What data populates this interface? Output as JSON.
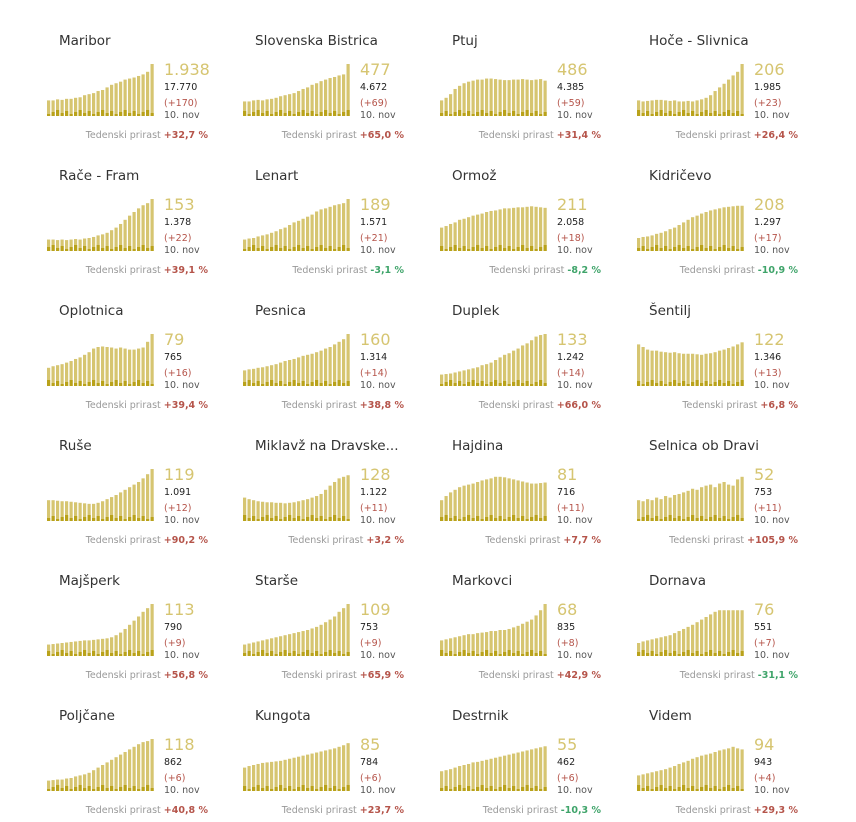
{
  "growth_label": "Tedenski prirast",
  "date_label": "10. nov",
  "colors": {
    "active": "#d6c571",
    "new": "#b9a21a",
    "positive": "#b5544a",
    "negative": "#3fa46a"
  },
  "chart_data": [
    {
      "type": "bar",
      "title": "Maribor",
      "active": "1.938",
      "total": "17.770",
      "new": "(+170)",
      "growth": "+32,7 %",
      "trend": "pos",
      "values": [
        30,
        30,
        32,
        31,
        33,
        33,
        35,
        36,
        40,
        42,
        44,
        48,
        50,
        55,
        60,
        63,
        66,
        70,
        72,
        74,
        77,
        80,
        85,
        100
      ]
    },
    {
      "type": "bar",
      "title": "Slovenska Bistrica",
      "active": "477",
      "total": "4.672",
      "new": "(+69)",
      "growth": "+65,0 %",
      "trend": "pos",
      "values": [
        28,
        28,
        30,
        31,
        30,
        32,
        33,
        35,
        38,
        40,
        42,
        44,
        48,
        52,
        55,
        60,
        63,
        67,
        70,
        73,
        75,
        78,
        80,
        100
      ]
    },
    {
      "type": "bar",
      "title": "Ptuj",
      "active": "486",
      "total": "4.385",
      "new": "(+59)",
      "growth": "+31,4 %",
      "trend": "pos",
      "values": [
        30,
        35,
        42,
        52,
        58,
        63,
        66,
        68,
        70,
        70,
        72,
        72,
        71,
        70,
        69,
        69,
        70,
        70,
        71,
        70,
        69,
        70,
        71,
        68
      ]
    },
    {
      "type": "bar",
      "title": "Hoče - Slivnica",
      "active": "206",
      "total": "1.985",
      "new": "(+23)",
      "growth": "+26,4 %",
      "trend": "pos",
      "values": [
        30,
        28,
        29,
        30,
        31,
        31,
        30,
        29,
        30,
        28,
        28,
        29,
        28,
        30,
        32,
        35,
        40,
        48,
        55,
        62,
        70,
        78,
        85,
        100
      ]
    },
    {
      "type": "bar",
      "title": "Rače - Fram",
      "active": "153",
      "total": "1.378",
      "new": "(+22)",
      "growth": "+39,1 %",
      "trend": "pos",
      "values": [
        22,
        22,
        21,
        22,
        21,
        22,
        23,
        22,
        24,
        25,
        27,
        30,
        32,
        35,
        40,
        45,
        52,
        60,
        68,
        75,
        82,
        88,
        92,
        100
      ]
    },
    {
      "type": "bar",
      "title": "Lenart",
      "active": "189",
      "total": "1.571",
      "new": "(+21)",
      "growth": "-3,1 %",
      "trend": "neg",
      "values": [
        22,
        24,
        25,
        28,
        30,
        32,
        35,
        38,
        42,
        45,
        50,
        55,
        58,
        62,
        66,
        70,
        76,
        80,
        82,
        85,
        88,
        90,
        92,
        100
      ]
    },
    {
      "type": "bar",
      "title": "Ormož",
      "active": "211",
      "total": "2.058",
      "new": "(+18)",
      "growth": "-8,2 %",
      "trend": "neg",
      "values": [
        45,
        48,
        52,
        55,
        60,
        62,
        65,
        68,
        70,
        72,
        75,
        77,
        78,
        80,
        82,
        82,
        83,
        84,
        84,
        85,
        86,
        85,
        84,
        83
      ]
    },
    {
      "type": "bar",
      "title": "Kidričevo",
      "active": "208",
      "total": "1.297",
      "new": "(+17)",
      "growth": "-10,9 %",
      "trend": "neg",
      "values": [
        25,
        27,
        28,
        30,
        33,
        35,
        38,
        42,
        45,
        50,
        55,
        60,
        65,
        68,
        72,
        75,
        78,
        80,
        82,
        84,
        85,
        86,
        87,
        87
      ]
    },
    {
      "type": "bar",
      "title": "Oplotnica",
      "active": "79",
      "total": "765",
      "new": "(+16)",
      "growth": "+39,4 %",
      "trend": "pos",
      "values": [
        35,
        38,
        40,
        42,
        45,
        48,
        52,
        55,
        60,
        65,
        72,
        75,
        76,
        75,
        74,
        72,
        74,
        72,
        70,
        70,
        72,
        74,
        85,
        100
      ]
    },
    {
      "type": "bar",
      "title": "Pesnica",
      "active": "160",
      "total": "1.314",
      "new": "(+14)",
      "growth": "+38,8 %",
      "trend": "pos",
      "values": [
        30,
        32,
        33,
        35,
        36,
        38,
        40,
        42,
        45,
        48,
        50,
        52,
        55,
        58,
        60,
        62,
        65,
        68,
        72,
        75,
        80,
        85,
        90,
        100
      ]
    },
    {
      "type": "bar",
      "title": "Duplek",
      "active": "133",
      "total": "1.242",
      "new": "(+14)",
      "growth": "+66,0 %",
      "trend": "pos",
      "values": [
        22,
        23,
        24,
        26,
        28,
        30,
        32,
        34,
        36,
        40,
        42,
        45,
        50,
        55,
        60,
        63,
        68,
        72,
        78,
        82,
        88,
        95,
        98,
        100
      ]
    },
    {
      "type": "bar",
      "title": "Šentilj",
      "active": "122",
      "total": "1.346",
      "new": "(+13)",
      "growth": "+6,8 %",
      "trend": "pos",
      "values": [
        80,
        75,
        70,
        68,
        68,
        66,
        65,
        64,
        65,
        63,
        62,
        62,
        62,
        61,
        60,
        62,
        63,
        65,
        68,
        70,
        73,
        76,
        80,
        84
      ]
    },
    {
      "type": "bar",
      "title": "Ruše",
      "active": "119",
      "total": "1.091",
      "new": "(+12)",
      "growth": "+90,2 %",
      "trend": "pos",
      "values": [
        40,
        40,
        39,
        38,
        38,
        37,
        36,
        35,
        34,
        33,
        33,
        35,
        38,
        42,
        46,
        50,
        55,
        60,
        65,
        70,
        75,
        82,
        90,
        100
      ]
    },
    {
      "type": "bar",
      "title": "Miklavž na Dravske...",
      "active": "128",
      "total": "1.122",
      "new": "(+11)",
      "growth": "+3,2 %",
      "trend": "pos",
      "values": [
        45,
        42,
        40,
        38,
        37,
        36,
        36,
        35,
        35,
        34,
        35,
        36,
        38,
        40,
        42,
        45,
        48,
        52,
        60,
        68,
        75,
        82,
        85,
        88
      ]
    },
    {
      "type": "bar",
      "title": "Hajdina",
      "active": "81",
      "total": "716",
      "new": "(+11)",
      "growth": "+7,7 %",
      "trend": "pos",
      "values": [
        40,
        48,
        55,
        60,
        65,
        68,
        70,
        72,
        75,
        78,
        80,
        82,
        85,
        85,
        84,
        82,
        80,
        78,
        76,
        74,
        72,
        72,
        73,
        74
      ]
    },
    {
      "type": "bar",
      "title": "Selnica ob Dravi",
      "active": "52",
      "total": "753",
      "new": "(+11)",
      "growth": "+105,9 %",
      "trend": "pos",
      "values": [
        40,
        38,
        42,
        40,
        45,
        42,
        48,
        45,
        50,
        52,
        55,
        58,
        62,
        60,
        65,
        68,
        70,
        65,
        72,
        75,
        70,
        68,
        80,
        85
      ]
    },
    {
      "type": "bar",
      "title": "Majšperk",
      "active": "113",
      "total": "790",
      "new": "(+9)",
      "growth": "+56,8 %",
      "trend": "pos",
      "values": [
        22,
        23,
        24,
        25,
        26,
        27,
        28,
        29,
        30,
        30,
        31,
        32,
        33,
        34,
        36,
        40,
        45,
        52,
        60,
        68,
        76,
        85,
        92,
        100
      ]
    },
    {
      "type": "bar",
      "title": "Starše",
      "active": "109",
      "total": "753",
      "new": "(+9)",
      "growth": "+65,9 %",
      "trend": "pos",
      "values": [
        22,
        24,
        26,
        28,
        30,
        32,
        34,
        36,
        38,
        40,
        42,
        44,
        46,
        48,
        50,
        53,
        56,
        60,
        65,
        70,
        76,
        85,
        92,
        100
      ]
    },
    {
      "type": "bar",
      "title": "Markovci",
      "active": "68",
      "total": "835",
      "new": "(+8)",
      "growth": "+42,9 %",
      "trend": "pos",
      "values": [
        30,
        32,
        34,
        36,
        38,
        40,
        42,
        42,
        44,
        45,
        46,
        48,
        48,
        50,
        50,
        52,
        55,
        58,
        62,
        66,
        70,
        78,
        88,
        100
      ]
    },
    {
      "type": "bar",
      "title": "Dornava",
      "active": "76",
      "total": "551",
      "new": "(+7)",
      "growth": "-31,1 %",
      "trend": "neg",
      "values": [
        25,
        28,
        30,
        32,
        34,
        36,
        38,
        40,
        44,
        48,
        52,
        56,
        60,
        65,
        70,
        75,
        80,
        85,
        88,
        88,
        88,
        88,
        88,
        88
      ]
    },
    {
      "type": "bar",
      "title": "Poljčane",
      "active": "118",
      "total": "862",
      "new": "(+6)",
      "growth": "+40,8 %",
      "trend": "pos",
      "values": [
        20,
        21,
        22,
        22,
        24,
        25,
        28,
        30,
        32,
        35,
        40,
        45,
        50,
        55,
        60,
        65,
        70,
        75,
        80,
        85,
        90,
        94,
        96,
        100
      ]
    },
    {
      "type": "bar",
      "title": "Kungota",
      "active": "85",
      "total": "784",
      "new": "(+6)",
      "growth": "+23,7 %",
      "trend": "pos",
      "values": [
        45,
        48,
        50,
        52,
        54,
        55,
        56,
        57,
        58,
        60,
        62,
        64,
        66,
        68,
        70,
        72,
        74,
        76,
        78,
        80,
        82,
        85,
        88,
        92
      ]
    },
    {
      "type": "bar",
      "title": "Destrnik",
      "active": "55",
      "total": "462",
      "new": "(+6)",
      "growth": "-10,3 %",
      "trend": "neg",
      "values": [
        38,
        40,
        42,
        45,
        48,
        50,
        52,
        55,
        56,
        58,
        60,
        62,
        64,
        66,
        68,
        70,
        72,
        74,
        76,
        78,
        80,
        82,
        84,
        86
      ]
    },
    {
      "type": "bar",
      "title": "Videm",
      "active": "94",
      "total": "943",
      "new": "(+4)",
      "growth": "+29,3 %",
      "trend": "pos",
      "values": [
        30,
        32,
        34,
        36,
        38,
        40,
        42,
        45,
        48,
        52,
        55,
        58,
        62,
        65,
        68,
        70,
        72,
        75,
        78,
        80,
        82,
        85,
        82,
        80
      ]
    }
  ]
}
